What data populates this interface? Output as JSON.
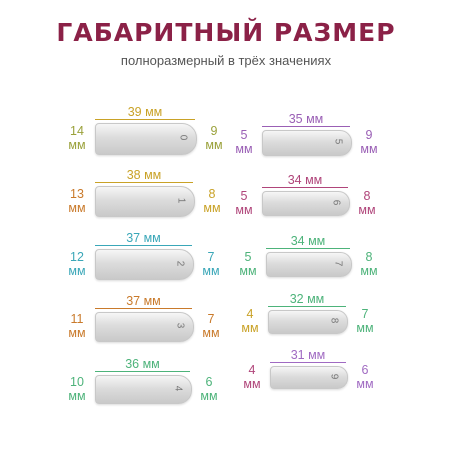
{
  "header": {
    "title": "ГАБАРИТНЫЙ РАЗМЕР",
    "subtitle": "полноразмерный в трёх значениях"
  },
  "colors": {
    "title": "#8b2147",
    "olive": "#9aa13a",
    "gold": "#c9a227",
    "teal": "#3aa7b8",
    "orange": "#c97a2b",
    "green": "#4db37a",
    "purple": "#9a5fb5",
    "magenta": "#b0457a",
    "lilac": "#a06ac2"
  },
  "tips": [
    {
      "number": "0",
      "length": "39 мм",
      "left": "14",
      "left_unit": "мм",
      "right": "9",
      "right_unit": "мм"
    },
    {
      "number": "1",
      "length": "38 мм",
      "left": "13",
      "left_unit": "мм",
      "right": "8",
      "right_unit": "мм"
    },
    {
      "number": "2",
      "length": "37 мм",
      "left": "12",
      "left_unit": "мм",
      "right": "7",
      "right_unit": "мм"
    },
    {
      "number": "3",
      "length": "37 мм",
      "left": "11",
      "left_unit": "мм",
      "right": "7",
      "right_unit": "мм"
    },
    {
      "number": "4",
      "length": "36 мм",
      "left": "10",
      "left_unit": "мм",
      "right": "6",
      "right_unit": "мм"
    },
    {
      "number": "5",
      "length": "35 мм",
      "left": "5",
      "left_unit": "мм",
      "right": "9",
      "right_unit": "мм"
    },
    {
      "number": "6",
      "length": "34 мм",
      "left": "5",
      "left_unit": "мм",
      "right": "8",
      "right_unit": "мм"
    },
    {
      "number": "7",
      "length": "34 мм",
      "left": "5",
      "left_unit": "мм",
      "right": "8",
      "right_unit": "мм"
    },
    {
      "number": "8",
      "length": "32 мм",
      "left": "4",
      "left_unit": "мм",
      "right": "7",
      "right_unit": "мм"
    },
    {
      "number": "9",
      "length": "31 мм",
      "left": "4",
      "left_unit": "мм",
      "right": "6",
      "right_unit": "мм"
    }
  ]
}
